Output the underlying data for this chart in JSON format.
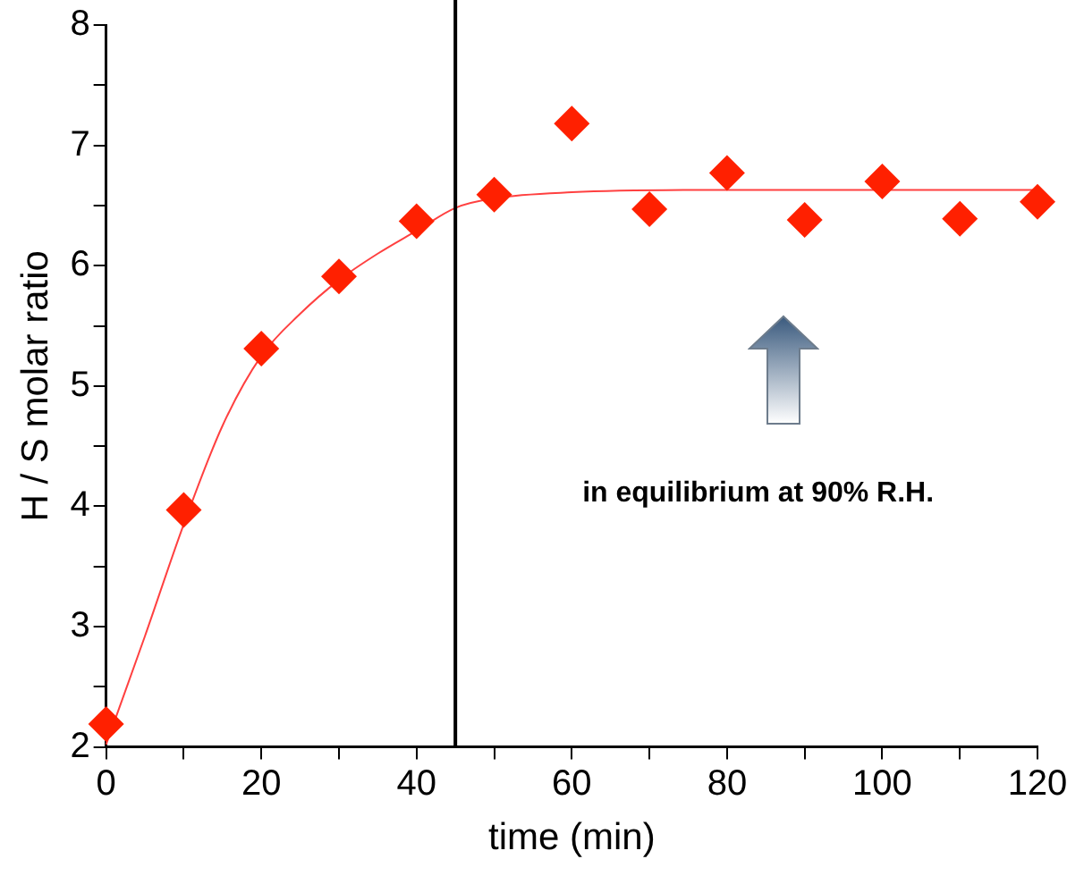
{
  "chart_data": {
    "type": "scatter",
    "xlabel": "time (min)",
    "ylabel": "H / S molar ratio",
    "series": [
      {
        "color": "#ff2000",
        "marker": "diamond",
        "x": [
          0,
          10,
          20,
          30,
          40,
          50,
          60,
          70,
          80,
          90,
          100,
          110,
          120
        ],
        "values": [
          2.19,
          3.97,
          5.31,
          5.91,
          6.37,
          6.59,
          7.18,
          6.47,
          6.77,
          6.38,
          6.7,
          6.39,
          6.53
        ]
      },
      {
        "type": "line",
        "color": "#ff4040",
        "marker": "none",
        "line_style": "solid",
        "x": [
          0,
          5,
          10,
          15,
          20,
          25,
          30,
          35,
          40,
          45,
          50,
          60,
          80,
          120
        ],
        "values": [
          2.02,
          2.92,
          3.85,
          4.67,
          5.25,
          5.6,
          5.88,
          6.1,
          6.29,
          6.48,
          6.56,
          6.61,
          6.63,
          6.63
        ]
      }
    ],
    "xlim": [
      0,
      120
    ],
    "xticks": [
      0,
      {
        "value": 10,
        "label": null
      },
      20,
      {
        "value": 30,
        "label": null
      },
      40,
      {
        "value": 50,
        "label": null
      },
      60,
      {
        "value": 70,
        "label": null
      },
      80,
      {
        "value": 90,
        "label": null
      },
      100,
      {
        "value": 110,
        "label": null
      },
      120
    ],
    "ylim": [
      2,
      8
    ],
    "yticks": [
      2,
      {
        "value": 2.5,
        "label": null
      },
      3,
      {
        "value": 3.5,
        "label": null
      },
      4,
      {
        "value": 4.5,
        "label": null
      },
      5,
      {
        "value": 5.5,
        "label": null
      },
      6,
      {
        "value": 6.5,
        "label": null
      },
      7,
      {
        "value": 7.5,
        "label": null
      },
      8
    ],
    "ref_lines": [
      {
        "axis": "x",
        "value": 45,
        "color": "#000000"
      }
    ],
    "annotations": [
      "in equilibrium at 90% R.H."
    ],
    "grid": false,
    "legend": false
  }
}
